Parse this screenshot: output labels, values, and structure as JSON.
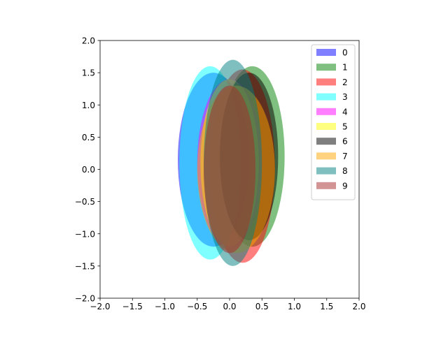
{
  "chart_data": {
    "type": "ellipse",
    "xlim": [
      -2,
      2
    ],
    "ylim": [
      -2,
      2
    ],
    "xticks": [
      {
        "value": -2,
        "label": "−2.0"
      },
      {
        "value": -1.5,
        "label": "−1.5"
      },
      {
        "value": -1,
        "label": "−1.0"
      },
      {
        "value": -0.5,
        "label": "−0.5"
      },
      {
        "value": 0,
        "label": "0.0"
      },
      {
        "value": 0.5,
        "label": "0.5"
      },
      {
        "value": 1,
        "label": "1.0"
      },
      {
        "value": 1.5,
        "label": "1.5"
      },
      {
        "value": 2,
        "label": "2.0"
      }
    ],
    "yticks": [
      {
        "value": -2,
        "label": "−2.0"
      },
      {
        "value": -1.5,
        "label": "−1.5"
      },
      {
        "value": -1,
        "label": "−1.0"
      },
      {
        "value": -0.5,
        "label": "−0.5"
      },
      {
        "value": 0,
        "label": "0.0"
      },
      {
        "value": 0.5,
        "label": "0.5"
      },
      {
        "value": 1,
        "label": "1.0"
      },
      {
        "value": 1.5,
        "label": "1.5"
      },
      {
        "value": 2,
        "label": "2.0"
      }
    ],
    "alpha": 0.5,
    "legend": "upper right",
    "series": [
      {
        "name": "0",
        "color": "#0000ff",
        "x": -0.25,
        "y": 0.15,
        "width": 1.1,
        "height": 2.7
      },
      {
        "name": "1",
        "color": "#008000",
        "x": 0.35,
        "y": 0.2,
        "width": 1.0,
        "height": 2.8
      },
      {
        "name": "2",
        "color": "#ff0000",
        "x": 0.2,
        "y": 0.05,
        "width": 1.0,
        "height": 3.0
      },
      {
        "name": "3",
        "color": "#00ffff",
        "x": -0.3,
        "y": 0.1,
        "width": 0.95,
        "height": 3.0
      },
      {
        "name": "4",
        "color": "#ff00ff",
        "x": 0.0,
        "y": 0.1,
        "width": 1.0,
        "height": 2.6
      },
      {
        "name": "5",
        "color": "#ffff00",
        "x": 0.0,
        "y": 0.1,
        "width": 0.9,
        "height": 2.6
      },
      {
        "name": "6",
        "color": "#000000",
        "x": 0.3,
        "y": 0.2,
        "width": 0.9,
        "height": 2.6
      },
      {
        "name": "7",
        "color": "#ffa500",
        "x": 0.1,
        "y": 0.0,
        "width": 1.2,
        "height": 2.6
      },
      {
        "name": "8",
        "color": "#008080",
        "x": 0.05,
        "y": 0.1,
        "width": 0.9,
        "height": 3.2
      },
      {
        "name": "9",
        "color": "#a52a2a",
        "x": 0.0,
        "y": 0.0,
        "width": 0.8,
        "height": 2.6
      }
    ]
  }
}
